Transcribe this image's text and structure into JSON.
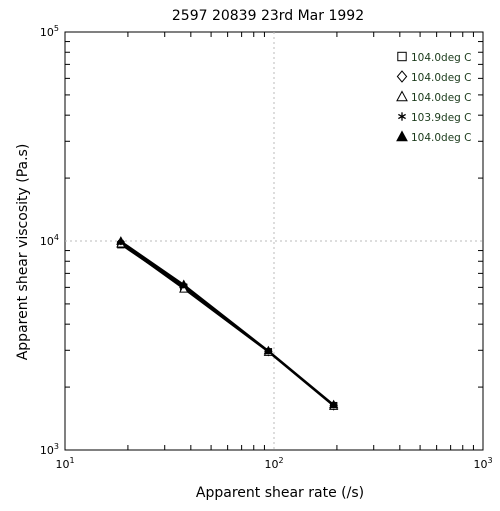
{
  "chart_data": {
    "type": "line",
    "title": "2597   20839   23rd Mar 1992",
    "xlabel": "Apparent shear rate (/s)",
    "ylabel": "Apparent shear viscosity (Pa.s)",
    "xscale": "log",
    "yscale": "log",
    "xlim": [
      10,
      1000
    ],
    "ylim": [
      1000,
      100000
    ],
    "x_ticks": [
      {
        "value": 10,
        "base": "10",
        "exp": "1"
      },
      {
        "value": 100,
        "base": "10",
        "exp": "2"
      },
      {
        "value": 1000,
        "base": "10",
        "exp": "3"
      }
    ],
    "y_ticks": [
      {
        "value": 1000,
        "base": "10",
        "exp": "3"
      },
      {
        "value": 10000,
        "base": "10",
        "exp": "4"
      },
      {
        "value": 100000,
        "base": "10",
        "exp": "5"
      }
    ],
    "grid": "dotted at decades",
    "legend_position": "top-right",
    "series": [
      {
        "name": "104.0deg C",
        "marker": "square",
        "x": [
          18.5,
          37,
          94,
          193
        ],
        "y": [
          9600,
          6000,
          2950,
          1630
        ]
      },
      {
        "name": "104.0deg C",
        "marker": "diamond",
        "x": [
          18.5,
          37,
          94,
          193
        ],
        "y": [
          9800,
          6050,
          2960,
          1630
        ]
      },
      {
        "name": "104.0deg C",
        "marker": "triangle-open",
        "x": [
          18.5,
          37,
          94,
          193
        ],
        "y": [
          9700,
          5900,
          2940,
          1620
        ]
      },
      {
        "name": "103.9deg C",
        "marker": "asterisk",
        "x": [
          18.5,
          37,
          94,
          193
        ],
        "y": [
          9900,
          6150,
          2970,
          1640
        ]
      },
      {
        "name": "104.0deg C",
        "marker": "triangle-filled",
        "x": [
          18.5,
          37,
          94,
          193
        ],
        "y": [
          10000,
          6200,
          2990,
          1650
        ]
      }
    ]
  }
}
